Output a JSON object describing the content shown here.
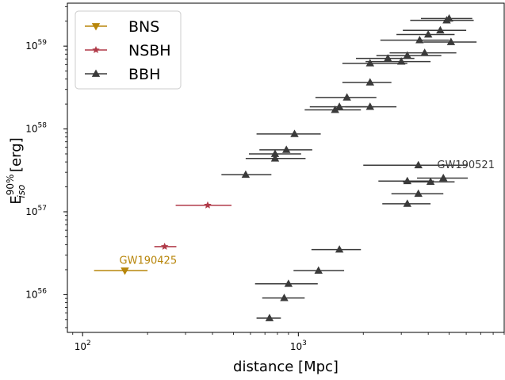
{
  "chart_data": {
    "type": "scatter",
    "xlabel": "distance [Mpc]",
    "ylabel": {
      "base": "E",
      "sup": "90%",
      "sub": "iso",
      "unit": " [erg]"
    },
    "xscale": "log",
    "yscale": "log",
    "xlim": [
      85,
      9000
    ],
    "ylim": [
      3.5e+55,
      3.3e+59
    ],
    "x_ticks": [
      {
        "value": 100,
        "base": "10",
        "exp": "2"
      },
      {
        "value": 1000,
        "base": "10",
        "exp": "3"
      }
    ],
    "y_ticks": [
      {
        "value": 1e+56,
        "base": "10",
        "exp": "56"
      },
      {
        "value": 1e+57,
        "base": "10",
        "exp": "57"
      },
      {
        "value": 1e+58,
        "base": "10",
        "exp": "58"
      },
      {
        "value": 1e+59,
        "base": "10",
        "exp": "59"
      }
    ],
    "grid": false,
    "legend_position": "top-left",
    "series": [
      {
        "name": "BNS",
        "marker": "triangle-down",
        "color": "#b8860b",
        "points": [
          {
            "x": 157,
            "y": 1.95e+56,
            "xmin": 113,
            "xmax": 200
          }
        ]
      },
      {
        "name": "NSBH",
        "marker": "star",
        "color": "#b03a48",
        "points": [
          {
            "x": 240,
            "y": 3.8e+56,
            "xmin": 215,
            "xmax": 272
          },
          {
            "x": 380,
            "y": 1.2e+57,
            "xmin": 270,
            "xmax": 490
          }
        ]
      },
      {
        "name": "BBH",
        "marker": "triangle-up",
        "color": "#3a3a3a",
        "points": [
          {
            "x": 5000,
            "y": 2.15e+59,
            "xmin": 3700,
            "xmax": 6400
          },
          {
            "x": 4870,
            "y": 2.05e+59,
            "xmin": 3300,
            "xmax": 6500
          },
          {
            "x": 4550,
            "y": 1.55e+59,
            "xmin": 3050,
            "xmax": 6000
          },
          {
            "x": 4000,
            "y": 1.38e+59,
            "xmin": 2850,
            "xmax": 5300
          },
          {
            "x": 3650,
            "y": 1.18e+59,
            "xmin": 2400,
            "xmax": 5000
          },
          {
            "x": 5100,
            "y": 1.12e+59,
            "xmin": 3800,
            "xmax": 6700
          },
          {
            "x": 3850,
            "y": 8.3e+58,
            "xmin": 2650,
            "xmax": 5400
          },
          {
            "x": 3200,
            "y": 7.7e+58,
            "xmin": 2300,
            "xmax": 4600
          },
          {
            "x": 2600,
            "y": 7.1e+58,
            "xmin": 1850,
            "xmax": 3450
          },
          {
            "x": 3000,
            "y": 6.5e+58,
            "xmin": 2050,
            "xmax": 4100
          },
          {
            "x": 2150,
            "y": 6.2e+58,
            "xmin": 1600,
            "xmax": 3200
          },
          {
            "x": 2150,
            "y": 3.65e+58,
            "xmin": 1600,
            "xmax": 2700
          },
          {
            "x": 1680,
            "y": 2.4e+58,
            "xmin": 1200,
            "xmax": 2300
          },
          {
            "x": 1550,
            "y": 1.85e+58,
            "xmin": 1130,
            "xmax": 2250
          },
          {
            "x": 2150,
            "y": 1.85e+58,
            "xmin": 1650,
            "xmax": 2850
          },
          {
            "x": 1480,
            "y": 1.7e+58,
            "xmin": 1070,
            "xmax": 1950
          },
          {
            "x": 960,
            "y": 8.7e+57,
            "xmin": 640,
            "xmax": 1270
          },
          {
            "x": 880,
            "y": 5.6e+57,
            "xmin": 660,
            "xmax": 1160
          },
          {
            "x": 780,
            "y": 5e+57,
            "xmin": 590,
            "xmax": 1030
          },
          {
            "x": 780,
            "y": 4.4e+57,
            "xmin": 570,
            "xmax": 1080
          },
          {
            "x": 570,
            "y": 2.8e+57,
            "xmin": 440,
            "xmax": 750
          },
          {
            "x": 3600,
            "y": 3.65e+57,
            "xmin": 2000,
            "xmax": 6100
          },
          {
            "x": 4700,
            "y": 2.55e+57,
            "xmin": 3550,
            "xmax": 6100
          },
          {
            "x": 3200,
            "y": 2.35e+57,
            "xmin": 2350,
            "xmax": 4250
          },
          {
            "x": 4100,
            "y": 2.3e+57,
            "xmin": 3050,
            "xmax": 5300
          },
          {
            "x": 3600,
            "y": 1.65e+57,
            "xmin": 2700,
            "xmax": 4700
          },
          {
            "x": 3200,
            "y": 1.25e+57,
            "xmin": 2450,
            "xmax": 4100
          },
          {
            "x": 1550,
            "y": 3.5e+56,
            "xmin": 1150,
            "xmax": 1950
          },
          {
            "x": 1240,
            "y": 1.95e+56,
            "xmin": 950,
            "xmax": 1630
          },
          {
            "x": 900,
            "y": 1.35e+56,
            "xmin": 630,
            "xmax": 1230
          },
          {
            "x": 860,
            "y": 9.1e+55,
            "xmin": 680,
            "xmax": 1070
          },
          {
            "x": 735,
            "y": 5.2e+55,
            "xmin": 640,
            "xmax": 830
          }
        ]
      }
    ],
    "annotations": [
      {
        "text": "GW190425",
        "x": 148,
        "y": 2.35e+56,
        "color": "#b8860b"
      },
      {
        "text": "GW190521",
        "x": 4400,
        "y": 3.35e+57,
        "color": "#3a3a3a"
      }
    ]
  }
}
